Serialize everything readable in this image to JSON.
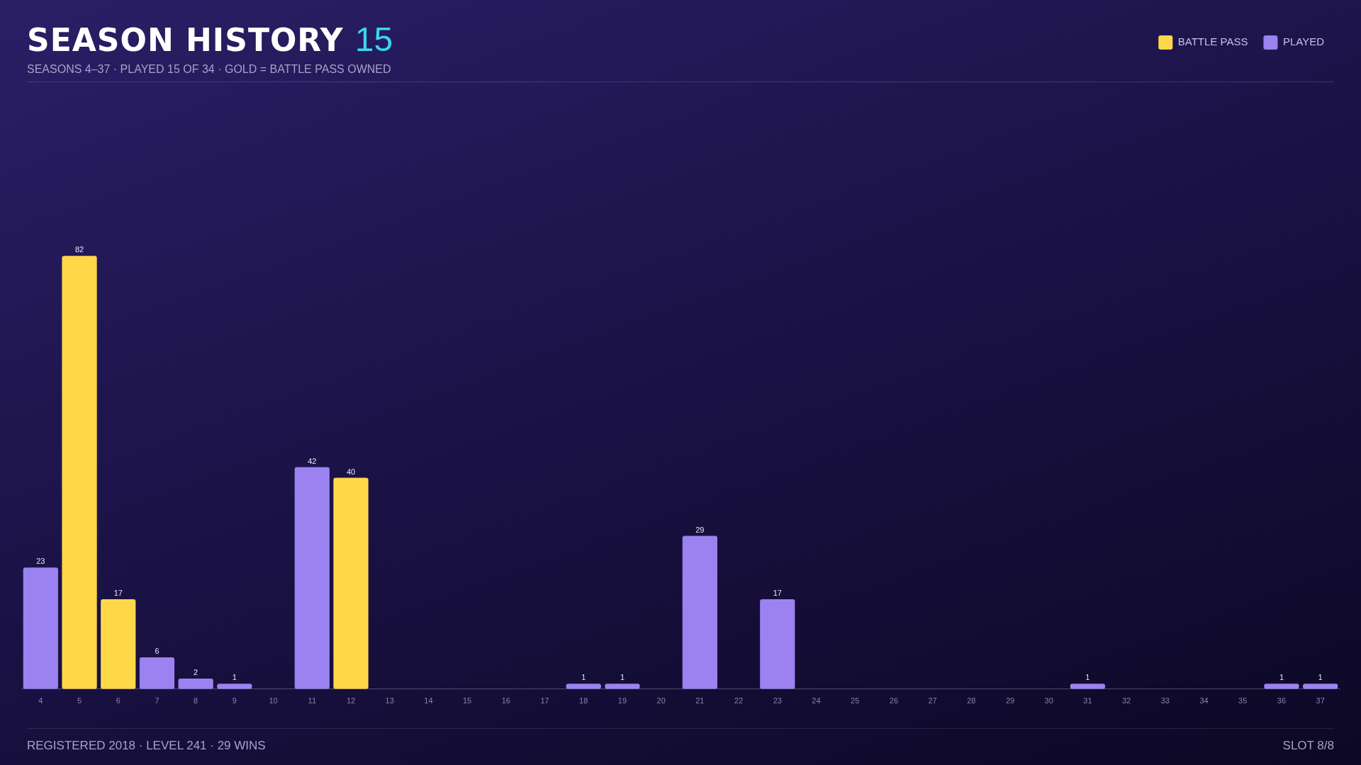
{
  "chart_data": {
    "type": "bar",
    "title": "SEASON HISTORY",
    "subtitle": "SEASONS 4–37 · PLAYED 15 OF 34 · GOLD = BATTLE PASS OWNED",
    "annotations": [
      "15",
      "REGISTERED 2018 · LEVEL 241 · 29 WINS",
      "SLOT 8/8"
    ],
    "categories": [
      "4",
      "5",
      "6",
      "7",
      "8",
      "9",
      "10",
      "11",
      "12",
      "13",
      "14",
      "15",
      "16",
      "17",
      "18",
      "19",
      "20",
      "21",
      "22",
      "23",
      "24",
      "25",
      "26",
      "27",
      "28",
      "29",
      "30",
      "31",
      "32",
      "33",
      "34",
      "35",
      "36",
      "37"
    ],
    "stacked": true,
    "grid": false,
    "legend": "top right",
    "tick_labels": "x",
    "series": [
      {
        "name": "BATTLE PASS",
        "color": "#ffd84a",
        "values": [
          null,
          82,
          17,
          null,
          null,
          null,
          null,
          null,
          40,
          null,
          null,
          null,
          null,
          null,
          null,
          null,
          null,
          null,
          null,
          null,
          null,
          null,
          null,
          null,
          null,
          null,
          null,
          null,
          null,
          null,
          null,
          null,
          null,
          null
        ],
        "value_labels": [
          null,
          "82",
          "17",
          null,
          null,
          null,
          null,
          null,
          "40",
          null,
          null,
          null,
          null,
          null,
          null,
          null,
          null,
          null,
          null,
          null,
          null,
          null,
          null,
          null,
          null,
          null,
          null,
          null,
          null,
          null,
          null,
          null,
          null,
          null
        ]
      },
      {
        "name": "PLAYED",
        "color": "#9b82f0",
        "values": [
          23,
          null,
          null,
          6,
          2,
          1,
          null,
          42,
          null,
          null,
          null,
          null,
          null,
          null,
          1,
          1,
          null,
          29,
          null,
          17,
          null,
          null,
          null,
          null,
          null,
          null,
          null,
          1,
          null,
          null,
          null,
          null,
          1,
          1
        ],
        "value_labels": [
          "23",
          null,
          null,
          "6",
          "2",
          "1",
          null,
          "42",
          null,
          null,
          null,
          null,
          null,
          null,
          "1",
          "1",
          null,
          "29",
          null,
          "17",
          null,
          null,
          null,
          null,
          null,
          null,
          null,
          "1",
          null,
          null,
          null,
          null,
          "1",
          "1"
        ]
      }
    ]
  }
}
